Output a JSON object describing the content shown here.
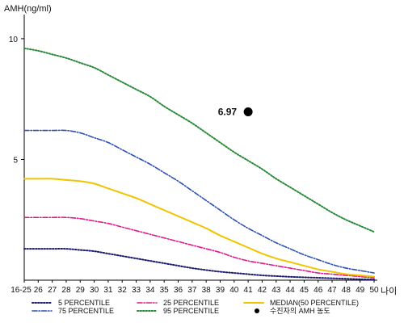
{
  "chart_data": {
    "type": "line",
    "ylabel": "AMH(ng/ml)",
    "xlabel": "나이",
    "ylim": [
      0,
      11
    ],
    "yticks": [
      5,
      10
    ],
    "categories": [
      "16-25",
      "26",
      "27",
      "28",
      "29",
      "30",
      "31",
      "32",
      "33",
      "34",
      "35",
      "36",
      "37",
      "38",
      "39",
      "40",
      "41",
      "42",
      "43",
      "44",
      "45",
      "46",
      "47",
      "48",
      "49",
      "50"
    ],
    "grid": false,
    "legend_position": "bottom",
    "series": [
      {
        "name": "5 PERCENTILE",
        "color": "#1a1a6e",
        "dash": "dotted",
        "values": [
          1.3,
          1.3,
          1.3,
          1.3,
          1.25,
          1.2,
          1.1,
          1.0,
          0.9,
          0.8,
          0.7,
          0.6,
          0.5,
          0.42,
          0.35,
          0.3,
          0.25,
          0.2,
          0.17,
          0.14,
          0.12,
          0.1,
          0.08,
          0.06,
          0.04,
          0.03
        ]
      },
      {
        "name": "25 PERCENTILE",
        "color": "#e0188c",
        "dash": "dashdot",
        "values": [
          2.6,
          2.6,
          2.6,
          2.6,
          2.55,
          2.45,
          2.35,
          2.2,
          2.05,
          1.9,
          1.75,
          1.6,
          1.45,
          1.3,
          1.15,
          0.95,
          0.8,
          0.7,
          0.6,
          0.5,
          0.4,
          0.3,
          0.25,
          0.2,
          0.15,
          0.1
        ]
      },
      {
        "name": "MEDIAN(50 PERCENTILE)",
        "color": "#f0c400",
        "dash": "solid",
        "values": [
          4.2,
          4.2,
          4.2,
          4.15,
          4.1,
          4.0,
          3.8,
          3.6,
          3.4,
          3.15,
          2.9,
          2.65,
          2.4,
          2.15,
          1.85,
          1.6,
          1.35,
          1.1,
          0.9,
          0.75,
          0.6,
          0.45,
          0.35,
          0.25,
          0.2,
          0.15
        ]
      },
      {
        "name": "75 PERCENTILE",
        "color": "#2c50b4",
        "dash": "dashdot",
        "values": [
          6.2,
          6.2,
          6.2,
          6.2,
          6.1,
          5.9,
          5.7,
          5.4,
          5.1,
          4.8,
          4.45,
          4.1,
          3.7,
          3.3,
          2.9,
          2.5,
          2.15,
          1.85,
          1.55,
          1.3,
          1.05,
          0.85,
          0.65,
          0.5,
          0.4,
          0.3
        ]
      },
      {
        "name": "95 PERCENTILE",
        "color": "#2a8a3a",
        "dash": "dotted",
        "values": [
          9.6,
          9.5,
          9.35,
          9.2,
          9.0,
          8.8,
          8.5,
          8.2,
          7.9,
          7.6,
          7.2,
          6.85,
          6.5,
          6.1,
          5.7,
          5.3,
          4.95,
          4.6,
          4.2,
          3.85,
          3.5,
          3.15,
          2.8,
          2.5,
          2.25,
          2.0
        ]
      }
    ],
    "marker": {
      "name": "수진자의 AMH 농도",
      "x": "41",
      "y": 6.97,
      "label": "6.97",
      "color": "#000000"
    },
    "legend": [
      "5 PERCENTILE",
      "25 PERCENTILE",
      "MEDIAN(50 PERCENTILE)",
      "75 PERCENTILE",
      "95 PERCENTILE",
      "수진자의 AMH 농도"
    ]
  }
}
